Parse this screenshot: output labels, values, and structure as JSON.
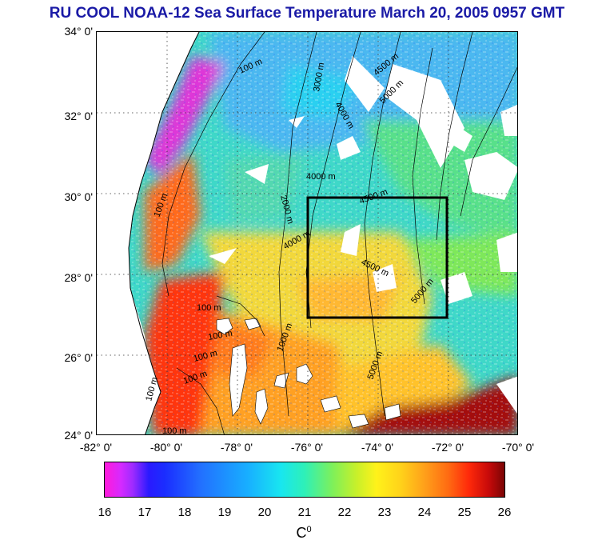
{
  "title": "RU COOL  NOAA-12 Sea Surface Temperature March 20, 2005 0957 GMT",
  "map": {
    "lat_labels": [
      "34° 0'",
      "32° 0'",
      "30° 0'",
      "28° 0'",
      "26° 0'",
      "24° 0'"
    ],
    "lon_labels": [
      "-82° 0'",
      "-80° 0'",
      "-78° 0'",
      "-76° 0'",
      "-74° 0'",
      "-72° 0'",
      "-70° 0'"
    ],
    "lat_range": [
      24,
      34
    ],
    "lon_range": [
      -82,
      -70
    ],
    "study_box": {
      "lon": [
        -76,
        -72
      ],
      "lat": [
        27,
        30
      ]
    },
    "grid": "dotted",
    "contour_labels": [
      "100 m",
      "100 m",
      "100 m",
      "100 m",
      "100 m",
      "100 m",
      "100 m",
      "100 m",
      "1000 m",
      "2000 m",
      "3000 m",
      "4000 m",
      "4000 m",
      "4000 m",
      "4500 m",
      "4500 m",
      "4500 m",
      "5000 m",
      "5000 m",
      "5000 m"
    ],
    "colors": {
      "land": "#ffffff",
      "title": "#1a1aa6",
      "box": "#000000"
    }
  },
  "colorbar": {
    "ticks": [
      "16",
      "17",
      "18",
      "19",
      "20",
      "21",
      "22",
      "23",
      "24",
      "25",
      "26"
    ],
    "range": [
      16,
      26
    ],
    "unit": "C",
    "unit_superscript": "0"
  }
}
